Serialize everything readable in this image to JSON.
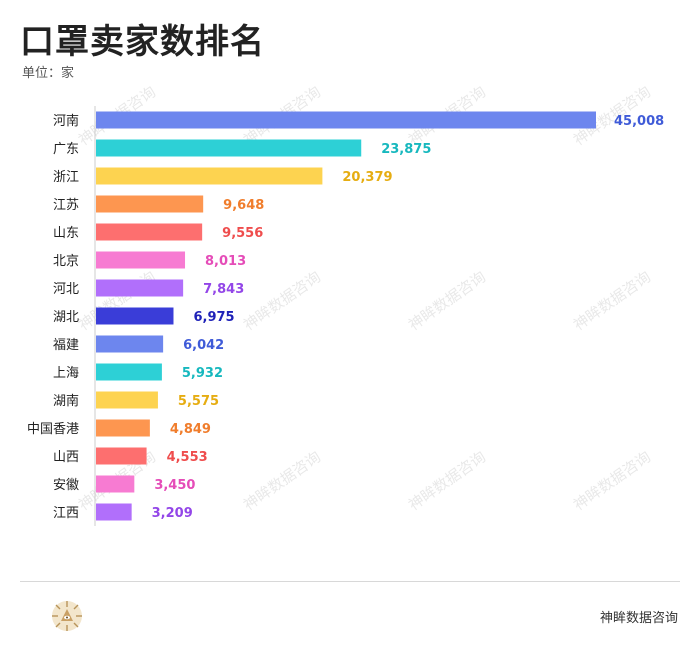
{
  "title": "口罩卖家数排名",
  "unit_label": "单位：家",
  "watermark": "神眸数据咨询",
  "footer": {
    "brand": "神眸数据咨询"
  },
  "chart_data": {
    "type": "bar",
    "orientation": "horizontal",
    "title": "口罩卖家数排名",
    "unit": "单位：家",
    "categories": [
      "河南",
      "广东",
      "浙江",
      "江苏",
      "山东",
      "北京",
      "河北",
      "湖北",
      "福建",
      "上海",
      "湖南",
      "中国香港",
      "山西",
      "安徽",
      "江西"
    ],
    "values": [
      45008,
      23875,
      20379,
      9648,
      9556,
      8013,
      7843,
      6975,
      6042,
      5932,
      5575,
      4849,
      4553,
      3450,
      3209
    ],
    "value_labels": [
      "45,008",
      "23,875",
      "20,379",
      "9,648",
      "9,556",
      "8,013",
      "7,843",
      "6,975",
      "6,042",
      "5,932",
      "5,575",
      "4,849",
      "4,553",
      "3,450",
      "3,209"
    ],
    "colors": [
      "#6d86ee",
      "#2dd0d6",
      "#fdd350",
      "#fd9650",
      "#fd6f6f",
      "#f77bd2",
      "#b16ffb",
      "#3a3dd8",
      "#6d86ee",
      "#2dd0d6",
      "#fdd350",
      "#fd9650",
      "#fd6f6f",
      "#f77bd2",
      "#b16ffb"
    ],
    "label_colors": [
      "#3f5bd8",
      "#17b8be",
      "#e6ad12",
      "#f07d2c",
      "#ef4d4d",
      "#e54cb8",
      "#9346e8",
      "#1f22b8",
      "#3f5bd8",
      "#17b8be",
      "#e6ad12",
      "#f07d2c",
      "#ef4d4d",
      "#e54cb8",
      "#9346e8"
    ],
    "xlim": [
      0,
      45008
    ],
    "grid": false,
    "legend": "none"
  }
}
